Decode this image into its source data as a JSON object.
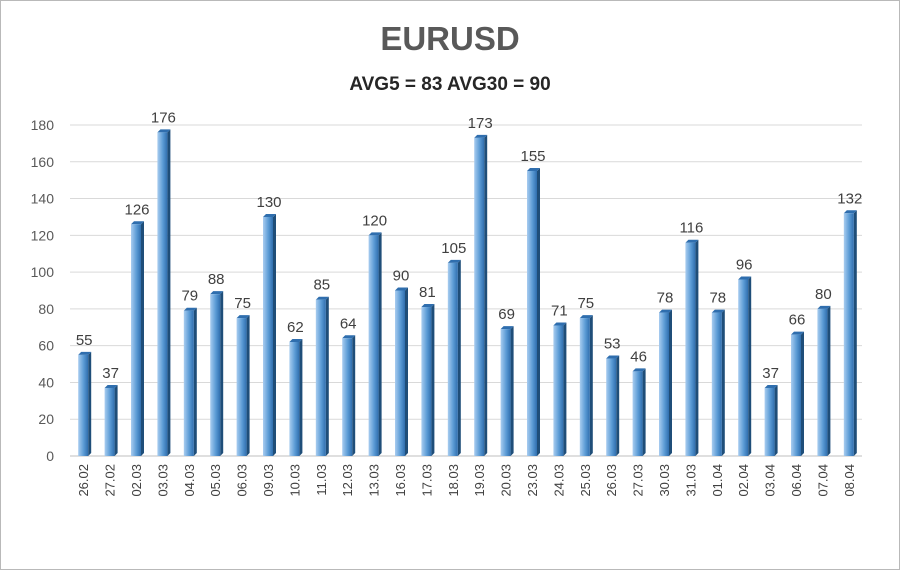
{
  "chart_data": {
    "type": "bar",
    "title": "EURUSD",
    "subtitle": "AVG5 = 83 AVG30 = 90",
    "xlabel": "",
    "ylabel": "",
    "ylim": [
      0,
      180
    ],
    "yticks": [
      0,
      20,
      40,
      60,
      80,
      100,
      120,
      140,
      160,
      180
    ],
    "grid": true,
    "categories": [
      "26.02",
      "27.02",
      "02.03",
      "03.03",
      "04.03",
      "05.03",
      "06.03",
      "09.03",
      "10.03",
      "11.03",
      "12.03",
      "13.03",
      "16.03",
      "17.03",
      "18.03",
      "19.03",
      "20.03",
      "23.03",
      "24.03",
      "25.03",
      "26.03",
      "27.03",
      "30.03",
      "31.03",
      "01.04",
      "02.04",
      "03.04",
      "06.04",
      "07.04",
      "08.04"
    ],
    "values": [
      55,
      37,
      126,
      176,
      79,
      88,
      75,
      130,
      62,
      85,
      64,
      120,
      90,
      81,
      105,
      173,
      69,
      155,
      71,
      75,
      53,
      46,
      78,
      116,
      78,
      96,
      37,
      66,
      80,
      132
    ],
    "colors": {
      "bar_light": "#a9cdf0",
      "bar_mid": "#5b9bd5",
      "bar_dark": "#2f6eae",
      "bar_side": "#1f4e79",
      "grid": "#d9d9d9"
    }
  }
}
